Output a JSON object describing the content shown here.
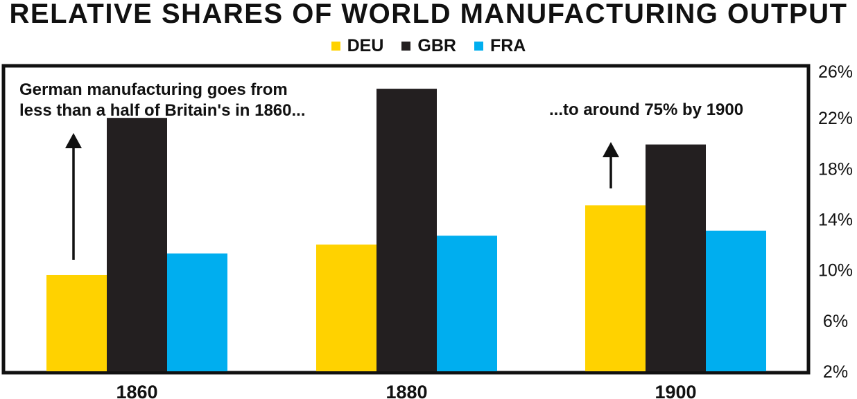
{
  "chart_data": {
    "type": "bar",
    "title": "RELATIVE SHARES OF WORLD MANUFACTURING OUTPUT",
    "categories": [
      "1860",
      "1880",
      "1900"
    ],
    "series": [
      {
        "name": "DEU",
        "color": "#FFD200",
        "values": [
          9.6,
          12,
          15.1
        ]
      },
      {
        "name": "GBR",
        "color": "#231F20",
        "values": [
          22,
          24.3,
          19.9
        ]
      },
      {
        "name": "FRA",
        "color": "#00AEEF",
        "values": [
          11.3,
          12.7,
          13.1
        ]
      }
    ],
    "ylim": [
      2,
      26
    ],
    "yticks": [
      "2%",
      "6%",
      "10%",
      "14%",
      "18%",
      "22%",
      "26%"
    ],
    "ytick_values": [
      2,
      6,
      10,
      14,
      18,
      22,
      26
    ],
    "y_axis_side": "right",
    "grid": false,
    "legend": "top-center",
    "annotations": [
      {
        "text": "German manufacturing goes from less than a half of Britain's in 1860...",
        "lines": [
          "German manufacturing goes from",
          "less than a half of Britain's in 1860..."
        ]
      },
      {
        "text": "...to around 75% by 1900",
        "lines": [
          "...to around 75% by 1900"
        ]
      }
    ]
  }
}
